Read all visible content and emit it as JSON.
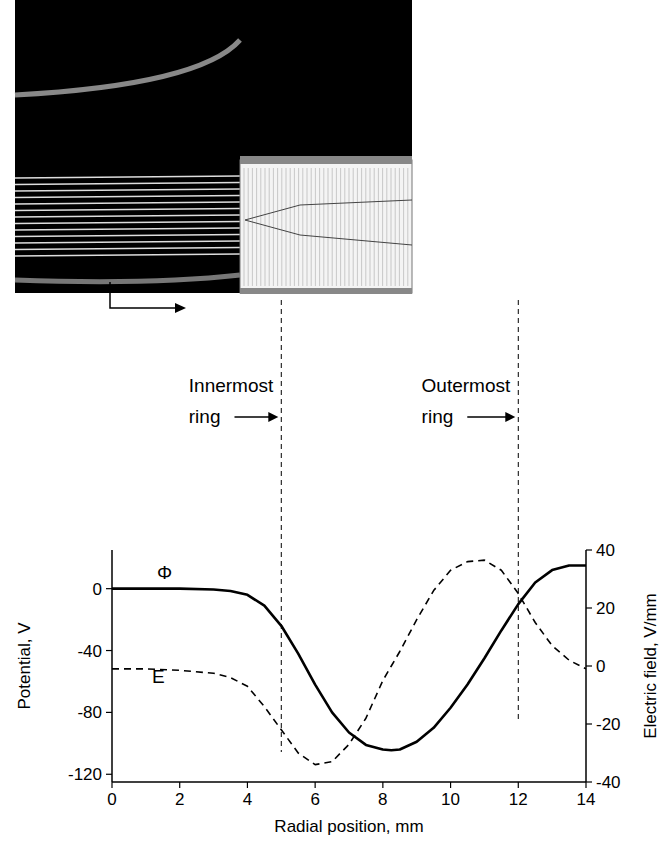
{
  "chart_data": {
    "type": "line",
    "x_label": "Radial position, mm",
    "y_label": "Potential, V",
    "y2_label": "Electric field, V/mm",
    "x": [
      0,
      1,
      2,
      3,
      3.5,
      4,
      4.5,
      5,
      5.5,
      6,
      6.5,
      7,
      7.5,
      8,
      8.25,
      8.5,
      9,
      9.5,
      10,
      10.5,
      11,
      11.5,
      12,
      12.5,
      13,
      13.5,
      14
    ],
    "series": [
      {
        "name": "Φ",
        "color": "#000000",
        "line_style": "solid",
        "values": [
          0,
          0,
          0,
          -0.5,
          -1.5,
          -4,
          -11,
          -24,
          -42,
          -62,
          -80,
          -93,
          -101,
          -104,
          -104.5,
          -104,
          -99,
          -90,
          -77,
          -62,
          -45,
          -27,
          -10,
          4,
          12,
          15,
          15
        ]
      },
      {
        "name": "E",
        "color": "#000000",
        "line_style": "dashed",
        "axis": "y2",
        "values": [
          -1,
          -1,
          -1.5,
          -2.5,
          -4,
          -7,
          -14,
          -22,
          -30,
          -34,
          -33,
          -27,
          -18,
          -5,
          0,
          5,
          16,
          26,
          33,
          36,
          36.5,
          33,
          25,
          15,
          7,
          2,
          -1
        ]
      }
    ],
    "xlim": [
      0,
      14
    ],
    "xticks": [
      0,
      2,
      4,
      6,
      8,
      10,
      12,
      14
    ],
    "ylim": [
      -125,
      25
    ],
    "yticks": [
      -120,
      -80,
      -40,
      0
    ],
    "y2lim": [
      -40,
      40
    ],
    "y2ticks": [
      -40,
      -20,
      0,
      20,
      40
    ],
    "annotations": [
      {
        "text": "Innermost ring",
        "x": 5
      },
      {
        "text": "Outermost ring",
        "x": 12
      }
    ]
  }
}
